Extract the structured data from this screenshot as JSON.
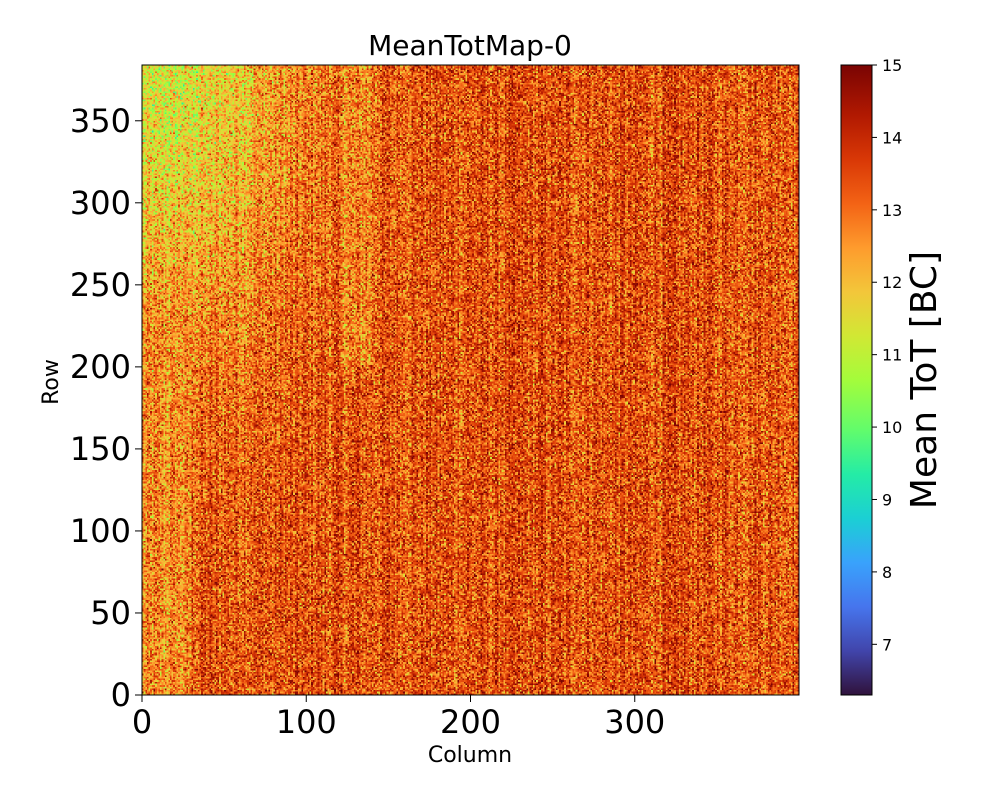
{
  "chart_data": {
    "type": "heatmap",
    "title": "MeanTotMap-0",
    "xlabel": "Column",
    "ylabel": "Row",
    "xlim": [
      0,
      400
    ],
    "ylim": [
      0,
      384
    ],
    "n_columns": 400,
    "n_rows": 384,
    "xticks": [
      0,
      100,
      200,
      300
    ],
    "yticks": [
      0,
      50,
      100,
      150,
      200,
      250,
      300,
      350
    ],
    "colorbar": {
      "label": "Mean ToT [BC]",
      "min": 6.3,
      "max": 15,
      "ticks": [
        7,
        8,
        9,
        10,
        11,
        12,
        13,
        14,
        15
      ],
      "colormap": "turbo"
    },
    "value_field": {
      "description_of_trend": "values mostly 12-15 BC; lower (9.5-11.5) toward top-left (columns 0-80, rows 250-384) and faint green vertical bands near columns 0-30 and 120-140",
      "mean_bulk": 13.4,
      "mean_top_left": 11.2
    }
  }
}
